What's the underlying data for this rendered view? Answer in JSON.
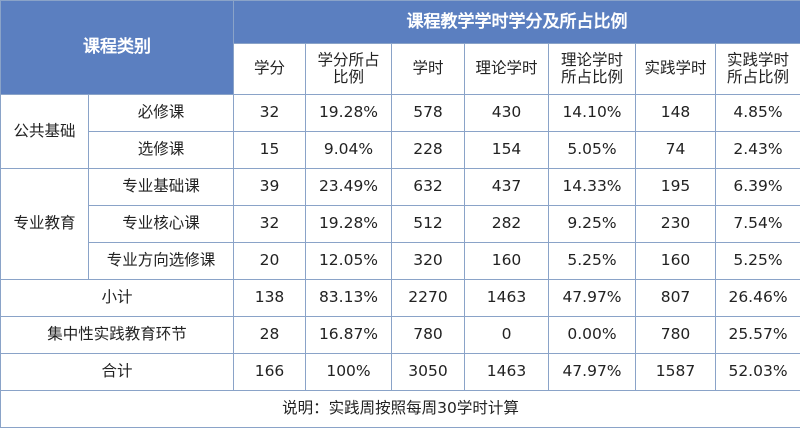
{
  "table": {
    "header": {
      "course_category": "课程类别",
      "group_title": "课程教学学时学分及所占比例",
      "columns": [
        "学分",
        "学分所占\n比例",
        "学时",
        "理论学时",
        "理论学时\n所占比例",
        "实践学时",
        "实践学时\n所占比例"
      ]
    },
    "groups": [
      {
        "name": "公共基础",
        "rows": [
          {
            "name": "必修课",
            "values": [
              "32",
              "19.28%",
              "578",
              "430",
              "14.10%",
              "148",
              "4.85%"
            ]
          },
          {
            "name": "选修课",
            "values": [
              "15",
              "9.04%",
              "228",
              "154",
              "5.05%",
              "74",
              "2.43%"
            ]
          }
        ]
      },
      {
        "name": "专业教育",
        "rows": [
          {
            "name": "专业基础课",
            "values": [
              "39",
              "23.49%",
              "632",
              "437",
              "14.33%",
              "195",
              "6.39%"
            ]
          },
          {
            "name": "专业核心课",
            "values": [
              "32",
              "19.28%",
              "512",
              "282",
              "9.25%",
              "230",
              "7.54%"
            ]
          },
          {
            "name": "专业方向选修课",
            "values": [
              "20",
              "12.05%",
              "320",
              "160",
              "5.25%",
              "160",
              "5.25%"
            ]
          }
        ]
      }
    ],
    "summary_rows": [
      {
        "name": "小计",
        "values": [
          "138",
          "83.13%",
          "2270",
          "1463",
          "47.97%",
          "807",
          "26.46%"
        ]
      },
      {
        "name": "集中性实践教育环节",
        "values": [
          "28",
          "16.87%",
          "780",
          "0",
          "0.00%",
          "780",
          "25.57%"
        ]
      },
      {
        "name": "合计",
        "values": [
          "166",
          "100%",
          "3050",
          "1463",
          "47.97%",
          "1587",
          "52.03%"
        ]
      }
    ],
    "note": "说明：实践周按照每周30学时计算"
  },
  "colors": {
    "header_bg": "#5b7fc0",
    "border": "#8aa3c8"
  }
}
